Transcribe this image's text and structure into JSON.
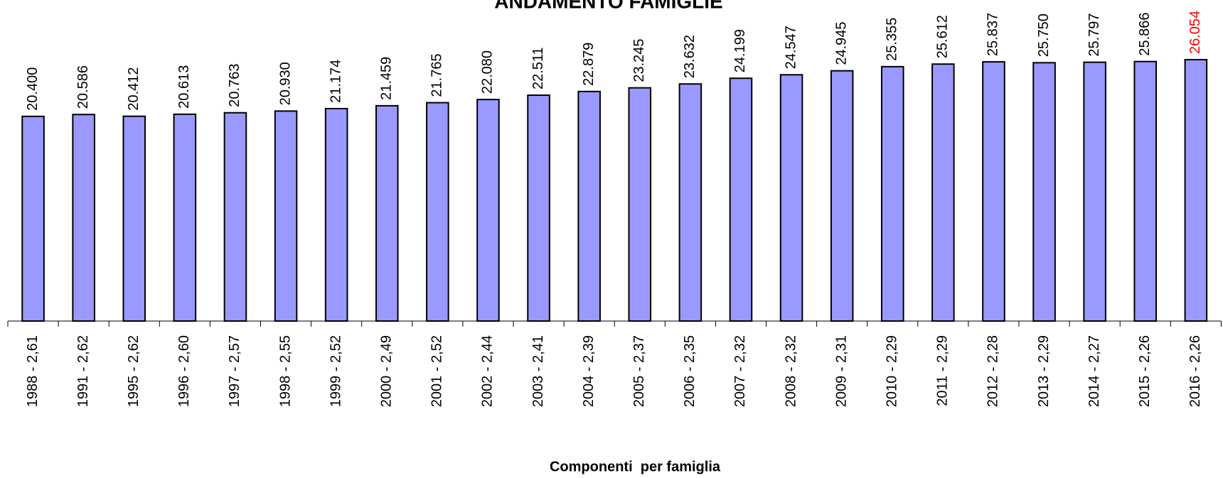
{
  "chart_data": {
    "type": "bar",
    "title": "ANDAMENTO FAMIGLIE",
    "x_label": "Componenti  per famiglia",
    "categories": [
      "1988 - 2,61",
      "1991 - 2,62",
      "1995 - 2,62",
      "1996 - 2,60",
      "1997 - 2,57",
      "1998 - 2,55",
      "1999 - 2,52",
      "2000 - 2,49",
      "2001 - 2,52",
      "2002 - 2,44",
      "2003 - 2,41",
      "2004 - 2,39",
      "2005 - 2,37",
      "2006 - 2,35",
      "2007 - 2,32",
      "2008 - 2,32",
      "2009 - 2,31",
      "2010 - 2,29",
      "2011 - 2,29",
      "2012 - 2,28",
      "2013 - 2,29",
      "2014 - 2,27",
      "2015 - 2,26",
      "2016 - 2,26"
    ],
    "values": [
      20400,
      20586,
      20412,
      20613,
      20763,
      20930,
      21174,
      21459,
      21765,
      22080,
      22511,
      22879,
      23245,
      23632,
      24199,
      24547,
      24945,
      25355,
      25612,
      25837,
      25750,
      25797,
      25866,
      26054
    ],
    "value_labels": [
      "20.400",
      "20.586",
      "20.412",
      "20.613",
      "20.763",
      "20.930",
      "21.174",
      "21.459",
      "21.765",
      "22.080",
      "22.511",
      "22.879",
      "23.245",
      "23.632",
      "24.199",
      "24.547",
      "24.945",
      "25.355",
      "25.612",
      "25.837",
      "25.750",
      "25.797",
      "25.866",
      "26.054"
    ],
    "color": "#9999ff",
    "value_label_color": "#000000",
    "highlight": {
      "index": 23,
      "color": "#ff0000"
    },
    "ylim": [
      0,
      32000
    ]
  }
}
